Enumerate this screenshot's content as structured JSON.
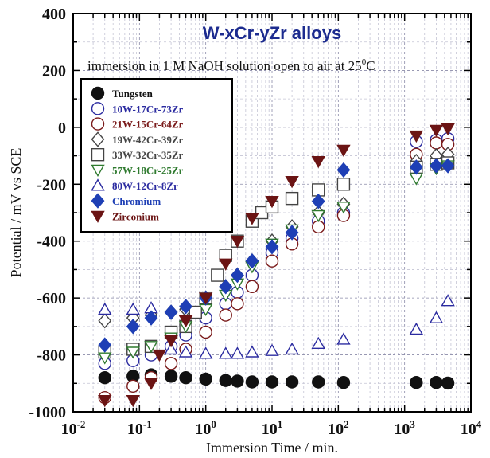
{
  "chart_data": {
    "type": "scatter",
    "title": "W-xCr-yZr alloys",
    "subtitle": "immersion in 1 M NaOH solution open to air at 25",
    "subtitle_sup": "0",
    "subtitle_end": "C",
    "xlabel": "Immersion Time / min.",
    "ylabel": "Potential / mV vs SCE",
    "xscale": "log",
    "xlim": [
      0.01,
      10000
    ],
    "ylim": [
      -1000,
      400
    ],
    "x_ticks": [
      {
        "base": "10",
        "exp": "-2"
      },
      {
        "base": "10",
        "exp": "-1"
      },
      {
        "base": "10",
        "exp": "0"
      },
      {
        "base": "10",
        "exp": "1"
      },
      {
        "base": "10",
        "exp": "2"
      },
      {
        "base": "10",
        "exp": "3"
      },
      {
        "base": "10",
        "exp": "4"
      }
    ],
    "y_ticks": [
      "400",
      "200",
      "0",
      "-200",
      "-400",
      "-600",
      "-800",
      "-1000"
    ],
    "legend_position": "top-left",
    "series": [
      {
        "name": "Tungsten",
        "marker": "circle",
        "fill": true,
        "color": "#111111",
        "x": [
          0.03,
          0.08,
          0.15,
          0.3,
          0.5,
          1,
          2,
          3,
          5,
          10,
          20,
          50,
          120,
          1500,
          3000,
          4500
        ],
        "y": [
          -880,
          -875,
          -870,
          -875,
          -880,
          -885,
          -890,
          -892,
          -895,
          -895,
          -895,
          -895,
          -897,
          -897,
          -897,
          -899
        ]
      },
      {
        "name": "10W-17Cr-73Zr",
        "marker": "circle-open",
        "fill": false,
        "color": "#2b2ba0",
        "x": [
          0.03,
          0.08,
          0.15,
          0.3,
          0.5,
          1,
          2,
          3,
          5,
          10,
          20,
          50,
          120,
          1500,
          3000,
          4500
        ],
        "y": [
          -830,
          -820,
          -800,
          -770,
          -730,
          -670,
          -620,
          -580,
          -520,
          -440,
          -390,
          -330,
          -300,
          -50,
          -45,
          -40
        ]
      },
      {
        "name": "21W-15Cr-64Zr",
        "marker": "circle-open",
        "fill": false,
        "color": "#7a1a1a",
        "x": [
          0.03,
          0.08,
          0.15,
          0.3,
          0.5,
          1,
          2,
          3,
          5,
          10,
          20,
          50,
          120,
          1500,
          3000,
          4500
        ],
        "y": [
          -950,
          -910,
          -880,
          -830,
          -780,
          -720,
          -660,
          -620,
          -560,
          -470,
          -410,
          -350,
          -310,
          -95,
          -55,
          -60
        ]
      },
      {
        "name": "19W-42Cr-39Zr",
        "marker": "diamond-open",
        "fill": false,
        "color": "#444444",
        "x": [
          0.03,
          0.08,
          0.15,
          0.3,
          0.5,
          1,
          2,
          3,
          5,
          10,
          20,
          50,
          120,
          1500,
          3000,
          4500
        ],
        "y": [
          -680,
          -670,
          -660,
          -650,
          -640,
          -600,
          -560,
          -520,
          -470,
          -400,
          -350,
          -300,
          -270,
          -120,
          -100,
          -95
        ]
      },
      {
        "name": "33W-32Cr-35Zr",
        "marker": "square-open",
        "fill": false,
        "color": "#444444",
        "x": [
          0.03,
          0.08,
          0.15,
          0.3,
          0.5,
          0.7,
          1,
          1.5,
          2,
          3,
          5,
          7,
          10,
          20,
          50,
          120,
          1500,
          3000,
          4500
        ],
        "y": [
          -790,
          -780,
          -770,
          -720,
          -700,
          -650,
          -600,
          -520,
          -450,
          -400,
          -330,
          -300,
          -280,
          -250,
          -220,
          -200,
          -140,
          -130,
          -125
        ]
      },
      {
        "name": "57W-18Cr-25Zr",
        "marker": "triangle-down-open",
        "fill": false,
        "color": "#2f7a2f",
        "x": [
          0.03,
          0.08,
          0.15,
          0.3,
          0.5,
          1,
          2,
          3,
          5,
          10,
          20,
          50,
          120,
          1500,
          3000,
          4500
        ],
        "y": [
          -810,
          -790,
          -770,
          -740,
          -700,
          -640,
          -590,
          -550,
          -490,
          -410,
          -360,
          -310,
          -280,
          -180,
          -145,
          -135
        ]
      },
      {
        "name": "80W-12Cr-8Zr",
        "marker": "triangle-up-open",
        "fill": false,
        "color": "#2b2ba0",
        "x": [
          0.03,
          0.08,
          0.15,
          0.3,
          0.5,
          1,
          2,
          3,
          5,
          10,
          20,
          50,
          120,
          1500,
          3000,
          4500
        ],
        "y": [
          -640,
          -640,
          -635,
          -780,
          -790,
          -795,
          -795,
          -795,
          -790,
          -785,
          -780,
          -760,
          -745,
          -710,
          -670,
          -610
        ]
      },
      {
        "name": "Chromium",
        "marker": "diamond",
        "fill": true,
        "color": "#1e3fb5",
        "x": [
          0.03,
          0.08,
          0.15,
          0.3,
          0.5,
          1,
          2,
          3,
          5,
          10,
          20,
          50,
          120,
          1500,
          3000,
          4500
        ],
        "y": [
          -765,
          -700,
          -670,
          -650,
          -630,
          -600,
          -560,
          -520,
          -470,
          -420,
          -370,
          -260,
          -150,
          -140,
          -135,
          -135
        ]
      },
      {
        "name": "Zirconium",
        "marker": "triangle-down",
        "fill": true,
        "color": "#6b1414",
        "x": [
          0.03,
          0.08,
          0.15,
          0.2,
          0.3,
          0.5,
          1,
          2,
          3,
          5,
          10,
          20,
          50,
          120,
          1500,
          3000,
          4500
        ],
        "y": [
          -960,
          -960,
          -900,
          -800,
          -750,
          -680,
          -600,
          -480,
          -400,
          -320,
          -260,
          -190,
          -120,
          -80,
          -30,
          -10,
          -5
        ]
      }
    ]
  }
}
